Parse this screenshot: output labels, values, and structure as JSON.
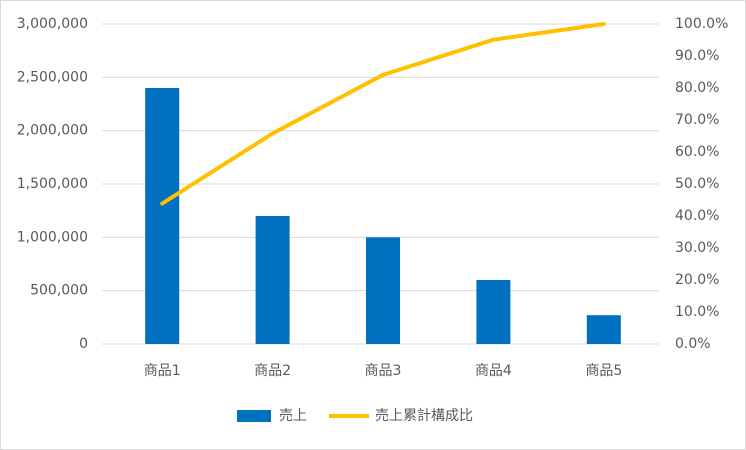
{
  "chart_data": {
    "type": "combo",
    "categories": [
      "商品1",
      "商品2",
      "商品3",
      "商品4",
      "商品5"
    ],
    "series": [
      {
        "name": "売上",
        "type": "bar",
        "color": "#0070C0",
        "values": [
          2400000,
          1200000,
          1000000,
          600000,
          270000
        ]
      },
      {
        "name": "売上累計構成比",
        "type": "line",
        "axis": "y2",
        "color": "#FFC000",
        "values": [
          43.9,
          65.8,
          84.1,
          95.1,
          100
        ]
      }
    ],
    "ylim": [
      0,
      3000000
    ],
    "yticks": [
      0,
      {
        "value": 500000,
        "label": "500,000"
      },
      {
        "value": 1000000,
        "label": "1,000,000"
      },
      {
        "value": 1500000,
        "label": "1,500,000"
      },
      {
        "value": 2000000,
        "label": "2,000,000"
      },
      {
        "value": 2500000,
        "label": "2,500,000"
      },
      {
        "value": 3000000,
        "label": "3,000,000"
      }
    ],
    "y2lim": [
      0,
      100
    ],
    "y2ticks": [
      {
        "value": 0,
        "label": "0.0%"
      },
      {
        "value": 10,
        "label": "10.0%"
      },
      {
        "value": 20,
        "label": "20.0%"
      },
      {
        "value": 30,
        "label": "30.0%"
      },
      {
        "value": 40,
        "label": "40.0%"
      },
      {
        "value": 50,
        "label": "50.0%"
      },
      {
        "value": 60,
        "label": "60.0%"
      },
      {
        "value": 70,
        "label": "70.0%"
      },
      {
        "value": 80,
        "label": "80.0%"
      },
      {
        "value": 90,
        "label": "90.0%"
      },
      {
        "value": 100,
        "label": "100.0%"
      }
    ],
    "grid": true,
    "legend": "bottom"
  }
}
